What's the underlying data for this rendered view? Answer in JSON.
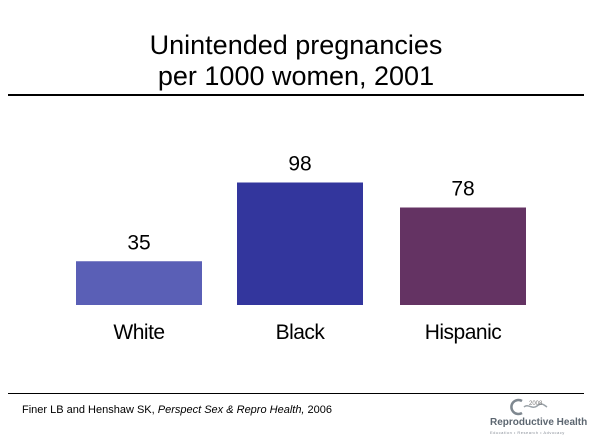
{
  "slide": {
    "title_line1": "Unintended pregnancies",
    "title_line2": "per 1000 women, 2001"
  },
  "chart_data": {
    "type": "bar",
    "title": "Unintended pregnancies per 1000 women, 2001",
    "categories": [
      "White",
      "Black",
      "Hispanic"
    ],
    "values": [
      35,
      98,
      78
    ],
    "colors": [
      "#5a5fb6",
      "#33369d",
      "#643363"
    ],
    "ylim": [
      0,
      100
    ],
    "grid": false,
    "legend": "none",
    "xlabel": "",
    "ylabel": ""
  },
  "citation": {
    "authors": "Finer LB and Henshaw SK, ",
    "journal": "Perspect Sex & Repro Health,",
    "year": " 2006"
  },
  "logo": {
    "year": "2008",
    "name": "Reproductive Health",
    "tagline": "Education • Research • Advocacy",
    "color": "#5c6670"
  }
}
